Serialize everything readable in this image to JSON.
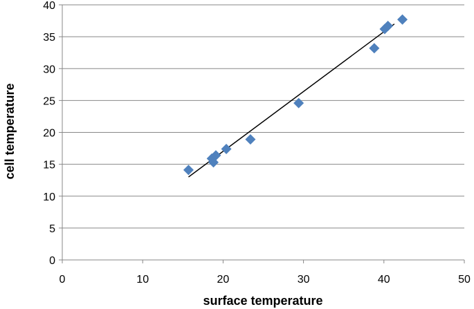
{
  "chart_data": {
    "type": "scatter",
    "title": "",
    "xlabel": "surface temperature",
    "ylabel": "cell temperature",
    "xlim": [
      0,
      50
    ],
    "ylim": [
      0,
      40
    ],
    "x_ticks": [
      0,
      10,
      20,
      30,
      40,
      50
    ],
    "y_ticks": [
      0,
      5,
      10,
      15,
      20,
      25,
      30,
      35,
      40
    ],
    "grid": "horizontal",
    "legend": "none",
    "series": [
      {
        "marker": "diamond",
        "color": "#4f81bd",
        "points": [
          {
            "x": 15.7,
            "y": 14.1
          },
          {
            "x": 18.6,
            "y": 15.9
          },
          {
            "x": 18.8,
            "y": 15.3
          },
          {
            "x": 19.1,
            "y": 16.4
          },
          {
            "x": 20.4,
            "y": 17.4
          },
          {
            "x": 23.4,
            "y": 18.9
          },
          {
            "x": 29.4,
            "y": 24.6
          },
          {
            "x": 38.8,
            "y": 33.2
          },
          {
            "x": 40.1,
            "y": 36.2
          },
          {
            "x": 40.5,
            "y": 36.7
          },
          {
            "x": 42.3,
            "y": 37.7
          }
        ]
      }
    ],
    "trendline": {
      "type": "linear",
      "color": "#000000",
      "x_start": 15.7,
      "y_start": 13.0,
      "x_end": 41.3,
      "y_end": 37.0
    }
  }
}
